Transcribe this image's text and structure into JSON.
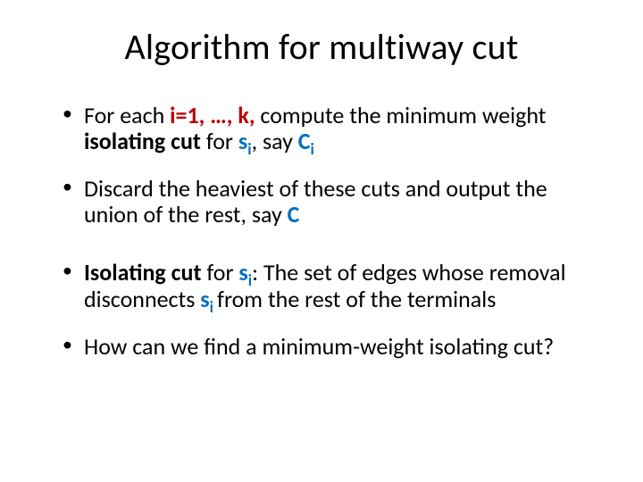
{
  "slide": {
    "title": "Algorithm for multiway cut",
    "title_fontsize": 40,
    "body_fontsize": 26,
    "background_color": "#ffffff",
    "text_color": "#000000",
    "red": "#c00000",
    "blue": "#0070c0",
    "bullets": [
      {
        "runs": [
          {
            "t": "For each "
          },
          {
            "t": "i=1, …, k,",
            "style": "bold red"
          },
          {
            "t": " compute the minimum weight "
          },
          {
            "t": "isolating cut",
            "style": "bold"
          },
          {
            "t": " for "
          },
          {
            "t": "s",
            "style": "bold blue"
          },
          {
            "t": "i",
            "style": "bold blue sub"
          },
          {
            "t": ", say "
          },
          {
            "t": "C",
            "style": "bold blue"
          },
          {
            "t": "i",
            "style": "bold blue sub"
          }
        ]
      },
      {
        "runs": [
          {
            "t": "Discard the heaviest of these cuts and output the union of the rest, say "
          },
          {
            "t": "C",
            "style": "bold blue"
          }
        ]
      },
      {
        "runs": [
          {
            "t": "Isolating cut",
            "style": "bold"
          },
          {
            "t": " for "
          },
          {
            "t": "s",
            "style": "bold blue"
          },
          {
            "t": "i",
            "style": "bold blue sub"
          },
          {
            "t": ":  The set of edges whose removal disconnects "
          },
          {
            "t": "s",
            "style": "bold blue"
          },
          {
            "t": "i ",
            "style": "bold blue sub"
          },
          {
            "t": "from the rest of the terminals"
          }
        ]
      },
      {
        "runs": [
          {
            "t": "How can we find a minimum-weight isolating cut?"
          }
        ]
      }
    ],
    "bullet_extra_margin": {
      "2": 36,
      "3": 20
    }
  }
}
